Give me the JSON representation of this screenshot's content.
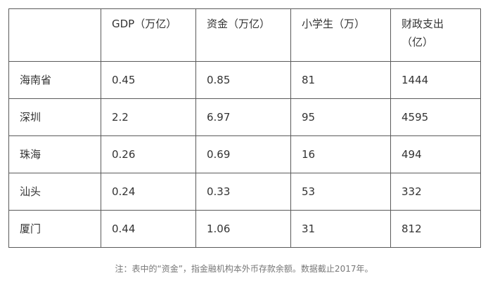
{
  "table": {
    "headers": [
      {
        "lines": [
          ""
        ]
      },
      {
        "lines": [
          "GDP（万亿）"
        ]
      },
      {
        "lines": [
          "资金（万亿）"
        ]
      },
      {
        "lines": [
          "小学生（万）"
        ]
      },
      {
        "lines": [
          "财政支出",
          "（亿）"
        ]
      }
    ],
    "rows": [
      {
        "cells": [
          "海南省",
          "0.45",
          "0.85",
          "81",
          "1444"
        ]
      },
      {
        "cells": [
          "深圳",
          "2.2",
          "6.97",
          "95",
          "4595"
        ]
      },
      {
        "cells": [
          "珠海",
          "0.26",
          "0.69",
          "16",
          "494"
        ]
      },
      {
        "cells": [
          "汕头",
          "0.24",
          "0.33",
          "53",
          "332"
        ]
      },
      {
        "cells": [
          "厦门",
          "0.44",
          "1.06",
          "31",
          "812"
        ]
      }
    ]
  },
  "note": "注：表中的“资金”，指金融机构本外币存款余额。数据截止2017年。"
}
